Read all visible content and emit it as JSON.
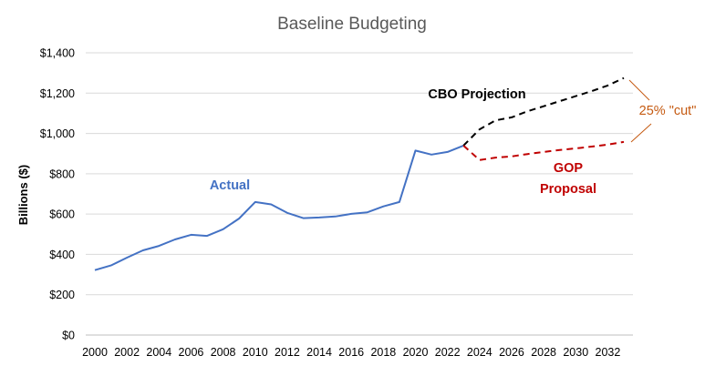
{
  "chart_data": {
    "type": "line",
    "title": "Baseline Budgeting",
    "xlabel": "",
    "ylabel": "Billions ($)",
    "xlim": [
      2000,
      2033
    ],
    "ylim": [
      0,
      1400
    ],
    "x_ticks": [
      "2000",
      "2002",
      "2004",
      "2006",
      "2008",
      "2010",
      "2012",
      "2014",
      "2016",
      "2018",
      "2020",
      "2022",
      "2024",
      "2026",
      "2028",
      "2030",
      "2032"
    ],
    "y_ticks": [
      {
        "value": 0,
        "label": "$0"
      },
      {
        "value": 200,
        "label": "$200"
      },
      {
        "value": 400,
        "label": "$400"
      },
      {
        "value": 600,
        "label": "$600"
      },
      {
        "value": 800,
        "label": "$800"
      },
      {
        "value": 1000,
        "label": "$1,000"
      },
      {
        "value": 1200,
        "label": "$1,200"
      },
      {
        "value": 1400,
        "label": "$1,400"
      }
    ],
    "grid": "horizontal",
    "series": [
      {
        "name": "Actual",
        "color": "#4472C4",
        "style": "solid",
        "points": [
          [
            2000,
            322
          ],
          [
            2001,
            345
          ],
          [
            2002,
            384
          ],
          [
            2003,
            420
          ],
          [
            2004,
            442
          ],
          [
            2005,
            474
          ],
          [
            2006,
            497
          ],
          [
            2007,
            492
          ],
          [
            2008,
            525
          ],
          [
            2009,
            578
          ],
          [
            2010,
            660
          ],
          [
            2011,
            648
          ],
          [
            2012,
            606
          ],
          [
            2013,
            580
          ],
          [
            2014,
            583
          ],
          [
            2015,
            588
          ],
          [
            2016,
            601
          ],
          [
            2017,
            609
          ],
          [
            2018,
            638
          ],
          [
            2019,
            660
          ],
          [
            2020,
            915
          ],
          [
            2021,
            895
          ],
          [
            2022,
            908
          ],
          [
            2023,
            940
          ]
        ]
      },
      {
        "name": "CBO Projection",
        "color": "#000000",
        "style": "dashed",
        "points": [
          [
            2023,
            940
          ],
          [
            2024,
            1020
          ],
          [
            2025,
            1065
          ],
          [
            2026,
            1080
          ],
          [
            2027,
            1110
          ],
          [
            2028,
            1135
          ],
          [
            2029,
            1160
          ],
          [
            2030,
            1185
          ],
          [
            2031,
            1210
          ],
          [
            2032,
            1238
          ],
          [
            2033,
            1275
          ]
        ]
      },
      {
        "name": "GOP Proposal",
        "color": "#C00000",
        "style": "dashed",
        "points": [
          [
            2023,
            940
          ],
          [
            2024,
            868
          ],
          [
            2025,
            880
          ],
          [
            2026,
            886
          ],
          [
            2027,
            898
          ],
          [
            2028,
            908
          ],
          [
            2029,
            918
          ],
          [
            2030,
            926
          ],
          [
            2031,
            935
          ],
          [
            2032,
            945
          ],
          [
            2033,
            958
          ]
        ]
      }
    ],
    "annotations": {
      "actual": "Actual",
      "cbo": "CBO Projection",
      "gop_line1": "GOP",
      "gop_line2": "Proposal",
      "cut": "25% \"cut\""
    },
    "annotation_colors": {
      "actual": "#4472C4",
      "cbo": "#000000",
      "gop": "#C00000",
      "cut": "#C55A11"
    }
  }
}
